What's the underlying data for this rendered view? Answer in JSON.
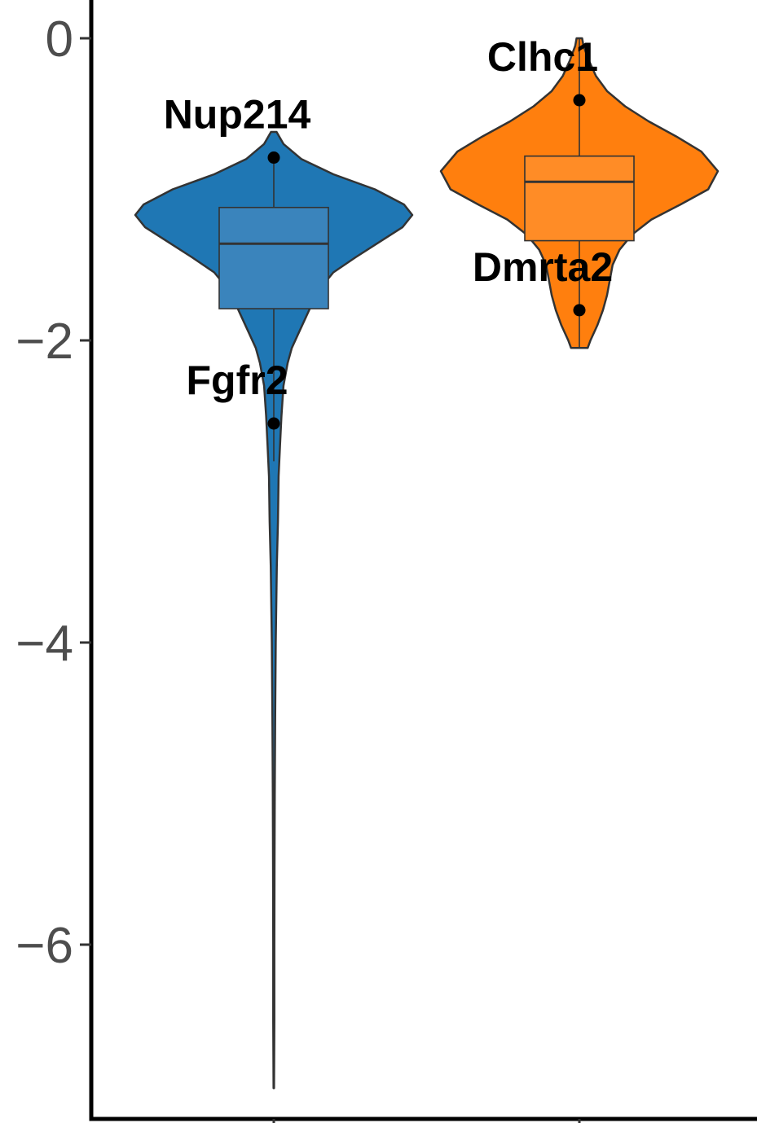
{
  "chart_data": {
    "type": "violin",
    "title": "",
    "xlabel": "",
    "ylabel": "",
    "ylim": [
      -7.1,
      0.25
    ],
    "y_ticks": [
      {
        "value": 0,
        "label": "0"
      },
      {
        "value": -2,
        "label": "−2"
      },
      {
        "value": -4,
        "label": "−4"
      },
      {
        "value": -6,
        "label": "−6"
      }
    ],
    "grid": false,
    "legend": "none",
    "groups": [
      {
        "color": "#1f77b4",
        "box_color": "#3a84bc",
        "box": {
          "q1": -1.79,
          "median": -1.36,
          "q3": -1.12
        },
        "whisker_range": [
          -2.8,
          -0.8
        ],
        "range": [
          -6.95,
          -0.62
        ],
        "density": [
          [
            -0.62,
            0.02
          ],
          [
            -0.7,
            0.07
          ],
          [
            -0.8,
            0.2
          ],
          [
            -0.9,
            0.43
          ],
          [
            -1.0,
            0.73
          ],
          [
            -1.1,
            0.94
          ],
          [
            -1.17,
            1.0
          ],
          [
            -1.25,
            0.93
          ],
          [
            -1.35,
            0.76
          ],
          [
            -1.45,
            0.59
          ],
          [
            -1.55,
            0.43
          ],
          [
            -1.65,
            0.34
          ],
          [
            -1.75,
            0.28
          ],
          [
            -1.85,
            0.23
          ],
          [
            -1.95,
            0.18
          ],
          [
            -2.05,
            0.13
          ],
          [
            -2.15,
            0.1
          ],
          [
            -2.3,
            0.07
          ],
          [
            -2.5,
            0.055
          ],
          [
            -2.7,
            0.045
          ],
          [
            -2.9,
            0.035
          ],
          [
            -3.2,
            0.03
          ],
          [
            -3.5,
            0.022
          ],
          [
            -4.0,
            0.014
          ],
          [
            -4.5,
            0.01
          ],
          [
            -5.0,
            0.007
          ],
          [
            -5.5,
            0.005
          ],
          [
            -6.0,
            0.004
          ],
          [
            -6.5,
            0.004
          ],
          [
            -6.95,
            0.002
          ]
        ],
        "points": [
          {
            "label": "Nup214",
            "value": -0.79
          },
          {
            "label": "Fgfr2",
            "value": -2.55
          }
        ]
      },
      {
        "color": "#ff7f0e",
        "box_color": "#ff8c26",
        "box": {
          "q1": -1.34,
          "median": -0.95,
          "q3": -0.78
        },
        "whisker_range": [
          -2.05,
          0.0
        ],
        "range": [
          -2.05,
          0.0
        ],
        "density": [
          [
            0.0,
            0.02
          ],
          [
            -0.05,
            0.03
          ],
          [
            -0.15,
            0.07
          ],
          [
            -0.25,
            0.12
          ],
          [
            -0.35,
            0.2
          ],
          [
            -0.45,
            0.33
          ],
          [
            -0.55,
            0.5
          ],
          [
            -0.65,
            0.7
          ],
          [
            -0.75,
            0.88
          ],
          [
            -0.88,
            1.0
          ],
          [
            -1.0,
            0.93
          ],
          [
            -1.1,
            0.73
          ],
          [
            -1.2,
            0.52
          ],
          [
            -1.3,
            0.38
          ],
          [
            -1.4,
            0.29
          ],
          [
            -1.5,
            0.24
          ],
          [
            -1.6,
            0.22
          ],
          [
            -1.7,
            0.2
          ],
          [
            -1.8,
            0.17
          ],
          [
            -1.9,
            0.13
          ],
          [
            -2.0,
            0.08
          ],
          [
            -2.05,
            0.06
          ]
        ],
        "points": [
          {
            "label": "Clhc1",
            "value": -0.41
          },
          {
            "label": "Dmrta2",
            "value": -1.8
          }
        ]
      }
    ]
  }
}
